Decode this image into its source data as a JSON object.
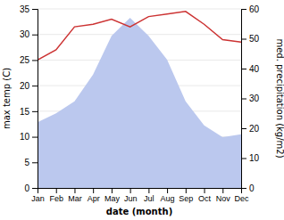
{
  "chart_data": {
    "type": "line",
    "categories": [
      "Jan",
      "Feb",
      "Mar",
      "Apr",
      "May",
      "Jun",
      "Jul",
      "Aug",
      "Sep",
      "Oct",
      "Nov",
      "Dec"
    ],
    "xlabel": "date (month)",
    "ylabel": "max temp (C)",
    "y2label": "med. precipitation (kg/m2)",
    "series": [
      {
        "type": "area",
        "axis": "y2",
        "color": "#bbc8ee",
        "values": [
          22,
          25,
          29,
          38,
          51,
          57,
          51,
          43,
          29,
          21,
          17,
          18
        ]
      },
      {
        "type": "line",
        "color": "#cc3333",
        "values": [
          25,
          27,
          31.5,
          32,
          33,
          31.5,
          33.5,
          34,
          34.5,
          32,
          29,
          28.5
        ]
      }
    ],
    "ylim": [
      0,
      35
    ],
    "yticks": [
      0,
      5,
      10,
      15,
      20,
      25,
      30,
      35
    ],
    "y2lim": [
      0,
      60
    ],
    "y2ticks": [
      0,
      10,
      20,
      30,
      40,
      50,
      60
    ],
    "grid": true
  }
}
